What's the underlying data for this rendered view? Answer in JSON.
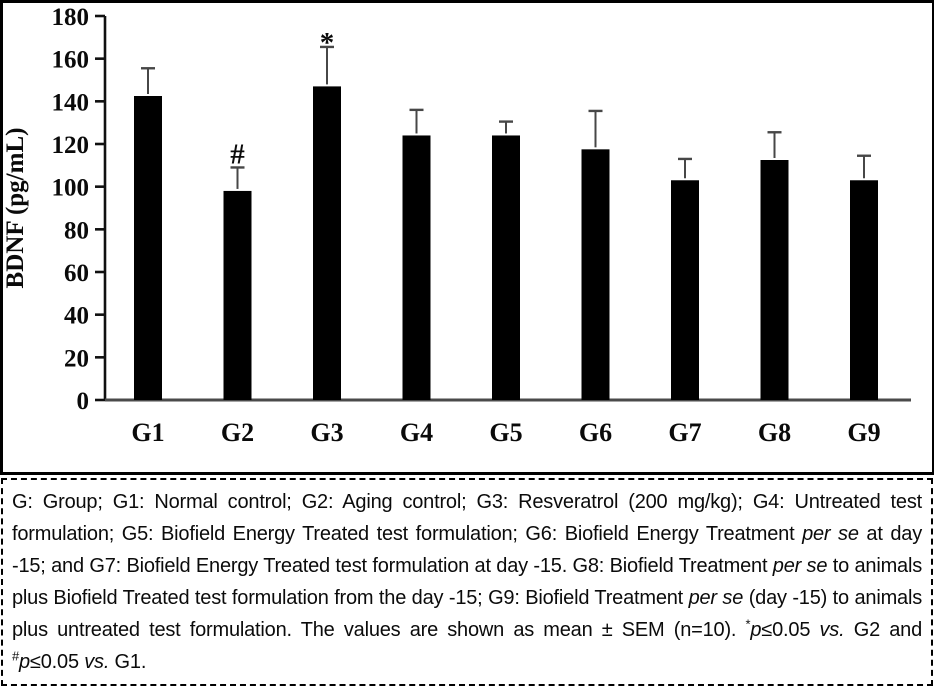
{
  "chart_data": {
    "type": "bar",
    "title": "",
    "xlabel": "",
    "ylabel": "BDNF (pg/mL)",
    "categories": [
      "G1",
      "G2",
      "G3",
      "G4",
      "G5",
      "G6",
      "G7",
      "G8",
      "G9"
    ],
    "values": [
      142.5,
      98,
      147,
      124,
      124,
      117.5,
      103,
      112.5,
      103
    ],
    "errors": [
      13,
      11,
      18.5,
      12,
      6.5,
      18,
      10,
      13,
      11.5
    ],
    "error_type": "SEM (upper error bars only)",
    "ylim": [
      0,
      180
    ],
    "yticks": [
      0,
      20,
      40,
      60,
      80,
      100,
      120,
      140,
      160,
      180
    ],
    "bar_color": "#000000",
    "error_color": "#474747",
    "grid": false,
    "legend": "none",
    "annotations": [
      {
        "category": "G2",
        "symbol": "#"
      },
      {
        "category": "G3",
        "symbol": "*"
      }
    ]
  },
  "caption": {
    "full_text": "G: Group; G1: Normal control; G2: Aging control; G3: Resveratrol (200 mg/kg); G4: Untreated test formulation; G5: Biofield Energy Treated test formulation; G6: Biofield Energy Treatment per se at day -15; and G7: Biofield Energy Treated test formulation at day -15. G8: Biofield Treatment per se to animals plus Biofield Treated test formulation from the day -15; G9: Biofield Treatment per se (day -15) to animals plus untreated test formulation. The values are shown as mean ± SEM (n=10). *p≤0.05 vs. G2 and #p≤0.05 vs. G1.",
    "segments": [
      {
        "t": "G: Group; G1:  Normal control; G2: Aging control; G3: Resveratrol (200 mg/kg); G4: Untreated test formulation; G5: Biofield Energy Treated test formulation; G6: Biofield Energy Treatment "
      },
      {
        "t": "per se",
        "style": "italic"
      },
      {
        "t": " at day -15; and G7: Biofield Energy Treated test formulation at day -15. G8: Biofield Treatment "
      },
      {
        "t": "per se",
        "style": "italic"
      },
      {
        "t": " to animals plus Biofield Treated test formulation from the day -15; G9: Biofield Treatment "
      },
      {
        "t": "per se",
        "style": "italic"
      },
      {
        "t": " (day -15) to animals plus untreated test formulation. The values are shown as mean ± SEM (n=10). "
      },
      {
        "t": "*",
        "style": "sup"
      },
      {
        "t": "p",
        "style": "italic"
      },
      {
        "t": "≤0.05 "
      },
      {
        "t": "vs.",
        "style": "italic"
      },
      {
        "t": " G2 and "
      },
      {
        "t": "#",
        "style": "sup"
      },
      {
        "t": "p",
        "style": "italic"
      },
      {
        "t": "≤0.05 "
      },
      {
        "t": "vs.",
        "style": "italic"
      },
      {
        "t": " G1."
      }
    ]
  }
}
